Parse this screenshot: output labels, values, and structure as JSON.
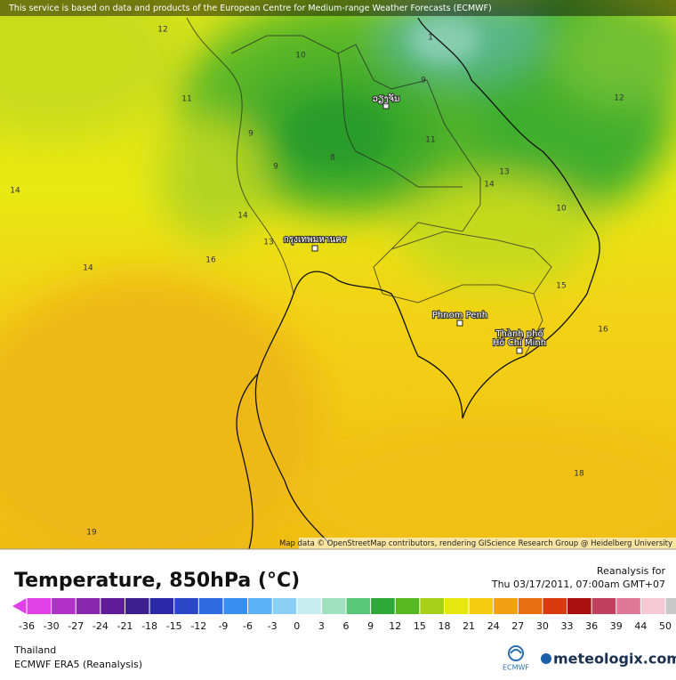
{
  "header": {
    "notice": "This service is based on data and products of the European Centre for Medium-range Weather Forecasts (ECMWF)"
  },
  "map": {
    "attribution": "Map data © OpenStreetMap contributors, rendering GIScience Research Group @ Heidelberg University",
    "cities": [
      {
        "label": "ວຽງຈັນ"
      },
      {
        "label": "กรุงเทพมหานคร"
      },
      {
        "label": "Phnom Penh"
      },
      {
        "label": [
          "Thành phố",
          "Hồ Chí Minh"
        ]
      }
    ],
    "contour_labels": [
      12,
      10,
      1,
      9,
      12,
      11,
      9,
      8,
      11,
      9,
      13,
      14,
      10,
      14,
      14,
      13,
      16,
      14,
      15,
      16,
      18,
      19
    ]
  },
  "legend": {
    "title": "Temperature, 850hPa (°C)",
    "run_label": "Reanalysis for",
    "run_time": "Thu 03/17/2011, 07:00am GMT+07",
    "ticks": [
      -36,
      -30,
      -27,
      -24,
      -21,
      -18,
      -15,
      -12,
      -9,
      -6,
      -3,
      0,
      3,
      6,
      9,
      12,
      15,
      18,
      21,
      24,
      27,
      30,
      33,
      36,
      39,
      44,
      50
    ],
    "colors": [
      "#e040e8",
      "#b030c8",
      "#8a28b0",
      "#601c98",
      "#3c1e8c",
      "#2a2aa8",
      "#2c48c8",
      "#2e6ae0",
      "#3a8ef0",
      "#5cb0f4",
      "#8ad0f4",
      "#c8ecf0",
      "#9ee0c0",
      "#58c878",
      "#2ea838",
      "#58b820",
      "#a8d018",
      "#e4e810",
      "#f4cc10",
      "#f0a010",
      "#e87010",
      "#d83a10",
      "#a81010",
      "#c04060",
      "#e07898",
      "#f4c8d4",
      "#c8c8c8"
    ]
  },
  "footer": {
    "region": "Thailand",
    "model": "ECMWF ERA5 (Reanalysis)",
    "ecmwf": "ECMWF",
    "brand": "meteologix.com"
  }
}
